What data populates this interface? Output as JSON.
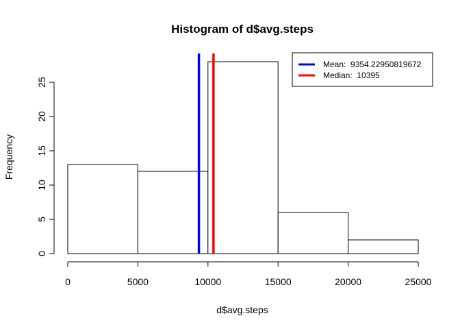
{
  "chart_data": {
    "type": "histogram",
    "title": "Histogram of d$avg.steps",
    "xlabel": "d$avg.steps",
    "ylabel": "Frequency",
    "xlim": [
      0,
      25000
    ],
    "ylim": [
      0,
      28
    ],
    "x_ticks": [
      0,
      5000,
      10000,
      15000,
      20000,
      25000
    ],
    "y_ticks": [
      0,
      5,
      10,
      15,
      20,
      25
    ],
    "x_tick_labels": [
      "0",
      "5000",
      "10000",
      "15000",
      "20000",
      "25000"
    ],
    "y_tick_labels": [
      "0",
      "5",
      "10",
      "15",
      "20",
      "25"
    ],
    "bins": [
      {
        "start": 0,
        "end": 5000,
        "count": 13
      },
      {
        "start": 5000,
        "end": 10000,
        "count": 12
      },
      {
        "start": 10000,
        "end": 15000,
        "count": 28
      },
      {
        "start": 15000,
        "end": 20000,
        "count": 6
      },
      {
        "start": 20000,
        "end": 25000,
        "count": 2
      }
    ],
    "vlines": [
      {
        "x": 9354.22950819672,
        "color": "#0000ff"
      },
      {
        "x": 10395,
        "color": "#ff0000"
      }
    ],
    "legend": {
      "placement": "top-right",
      "entries": [
        {
          "label": "Mean:  9354.22950819672",
          "color": "#0000ff"
        },
        {
          "label": "Median:  10395",
          "color": "#ff0000"
        }
      ]
    },
    "bar_fill": "#ffffff",
    "bar_stroke": "#000000",
    "grid": false
  }
}
